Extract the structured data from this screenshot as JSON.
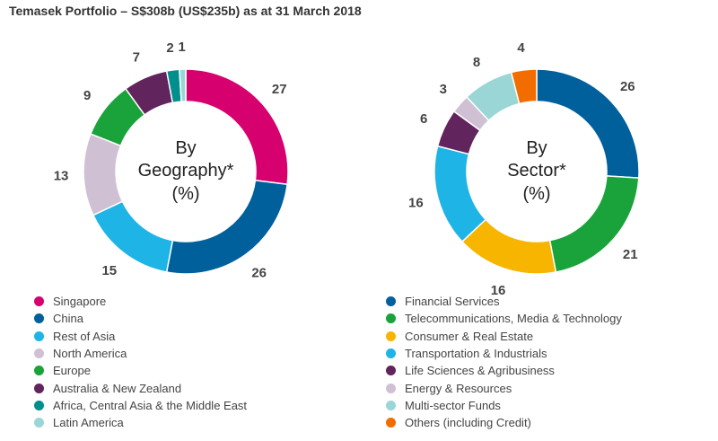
{
  "title": "Temasek Portfolio – S$308b (US$235b) as at 31 March 2018",
  "chart_data": [
    {
      "type": "pie",
      "center_lines": [
        "By",
        "Geography*",
        "(%)"
      ],
      "unit": "%",
      "categories": [
        "Singapore",
        "China",
        "Rest of Asia",
        "North America",
        "Europe",
        "Australia & New Zealand",
        "Africa, Central Asia & the Middle East",
        "Latin America"
      ],
      "values": [
        27,
        26,
        15,
        13,
        9,
        7,
        2,
        1
      ],
      "colors": [
        "#d6006e",
        "#00609c",
        "#1eb4e6",
        "#cfc1d3",
        "#19a33a",
        "#61245c",
        "#008f8c",
        "#9ad6d6"
      ],
      "legend_position": "bottom"
    },
    {
      "type": "pie",
      "center_lines": [
        "By",
        "Sector*",
        "(%)"
      ],
      "unit": "%",
      "categories": [
        "Financial Services",
        "Telecommunications, Media & Technology",
        "Consumer & Real Estate",
        "Transportation & Industrials",
        "Life Sciences & Agribusiness",
        "Energy & Resources",
        "Multi-sector Funds",
        "Others (including Credit)"
      ],
      "values": [
        26,
        21,
        16,
        16,
        6,
        3,
        8,
        4
      ],
      "colors": [
        "#00609c",
        "#19a33a",
        "#f7b500",
        "#1eb4e6",
        "#61245c",
        "#cfc1d3",
        "#9ad6d6",
        "#f26c00"
      ],
      "legend_position": "bottom"
    }
  ]
}
